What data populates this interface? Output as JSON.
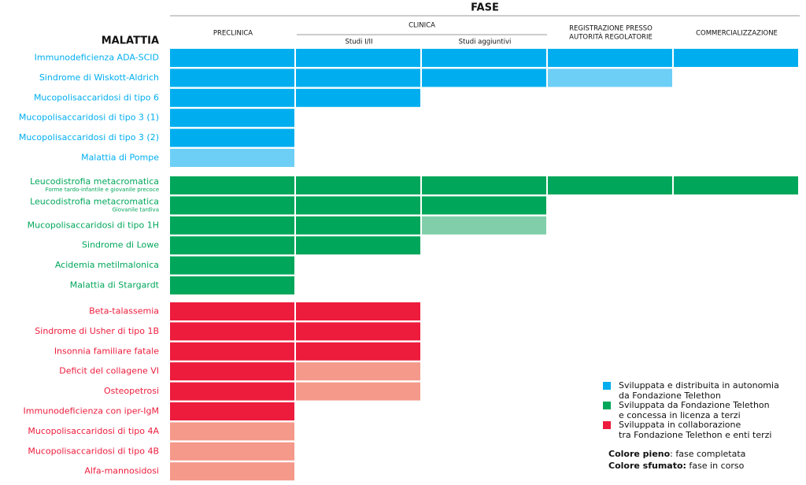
{
  "header": {
    "phase_title": "FASE",
    "disease_title": "MALATTIA",
    "phases": [
      "PRECLINICA",
      "CLINICA",
      "REGISTRAZIONE PRESSO",
      "AUTORITÀ REGOLATORIE",
      "COMMERCIALIZZAZIONE"
    ],
    "subphases": [
      "Studi I/II",
      "Studi aggiuntivi"
    ]
  },
  "groups": [
    {
      "color": "#00aeef",
      "faded_color": "#6dcff6",
      "legend": [
        "Sviluppata e distribuita in autonomia",
        "da Fondazione Telethon"
      ],
      "diseases": [
        {
          "name": "Immunodeficienza ADA-SCID",
          "full": 5,
          "faded": 0
        },
        {
          "name": "Sindrome di Wiskott-Aldrich",
          "full": 3,
          "faded": 1
        },
        {
          "name": "Mucopolisaccaridosi di tipo 6",
          "full": 2,
          "faded": 0
        },
        {
          "name": "Mucopolisaccaridosi di tipo 3 (1)",
          "full": 1,
          "faded": 0
        },
        {
          "name": "Mucopolisaccaridosi di tipo 3 (2)",
          "full": 1,
          "faded": 0
        },
        {
          "name": "Malattia di Pompe",
          "full": 0,
          "faded": 1
        }
      ]
    },
    {
      "color": "#00a65a",
      "faded_color": "#80cfaa",
      "legend": [
        "Sviluppata da Fondazione Telethon",
        "e concessa in licenza a terzi"
      ],
      "diseases": [
        {
          "name": "Leucodistrofia metacromatica",
          "note": "Forme tardo-infantile e giovanile precoce",
          "full": 5,
          "faded": 0
        },
        {
          "name": "Leucodistrofia metacromatica",
          "note": "Giovanile tardiva",
          "full": 3,
          "faded": 0
        },
        {
          "name": "Mucopolisaccaridosi di tipo 1H",
          "full": 2,
          "faded": 1
        },
        {
          "name": "Sindrome di Lowe",
          "full": 2,
          "faded": 0
        },
        {
          "name": "Acidemia metilmalonica",
          "full": 1,
          "faded": 0
        },
        {
          "name": "Malattia di Stargardt",
          "full": 1,
          "faded": 0
        }
      ]
    },
    {
      "color": "#ed1c3c",
      "faded_color": "#f5998a",
      "legend": [
        "Sviluppata in collaborazione",
        "tra Fondazione Telethon e enti terzi"
      ],
      "diseases": [
        {
          "name": "Beta-talassemia",
          "full": 2,
          "faded": 0
        },
        {
          "name": "Sindrome di Usher di tipo 1B",
          "full": 2,
          "faded": 0
        },
        {
          "name": "Insonnia familiare fatale",
          "full": 2,
          "faded": 0
        },
        {
          "name": "Deficit del collagene VI",
          "full": 1,
          "faded": 1
        },
        {
          "name": "Osteopetrosi",
          "full": 1,
          "faded": 1
        },
        {
          "name": "Immunodeficienza con iper-IgM",
          "full": 1,
          "faded": 0
        },
        {
          "name": "Mucopolisaccaridosi di tipo 4A",
          "full": 0,
          "faded": 1
        },
        {
          "name": "Mucopolisaccaridosi di tipo 4B",
          "full": 0,
          "faded": 1
        },
        {
          "name": "Alfa-mannosidosi",
          "full": 0,
          "faded": 1
        }
      ]
    }
  ],
  "notes": [
    {
      "bold": "Colore pieno",
      "text": ": fase completata"
    },
    {
      "bold": "Colore sfumato:",
      "text": " fase in corso"
    }
  ]
}
